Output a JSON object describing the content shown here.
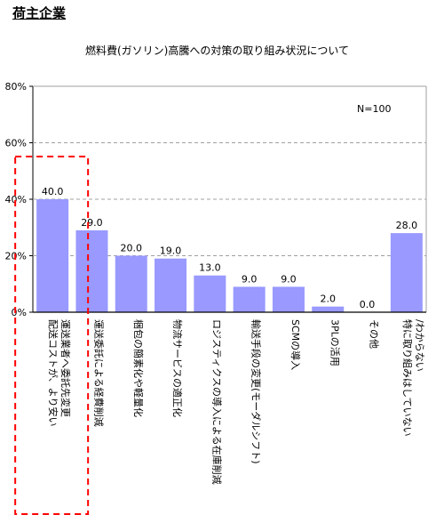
{
  "header": {
    "section_title": "荷主企業"
  },
  "chart_data": {
    "type": "bar",
    "title": "燃料費(ガソリン)高騰への対策の取り組み状況について",
    "note": "N=100",
    "unit": "%",
    "ylim": [
      0,
      80
    ],
    "yticks": [
      "0%",
      "20%",
      "40%",
      "60%",
      "80%"
    ],
    "ytick_values": [
      0,
      20,
      40,
      60,
      80
    ],
    "categories": [
      [
        "配送コストが、より安い",
        "運送業者へ委託先変更"
      ],
      [
        "運送委託による経費削減"
      ],
      [
        "梱包の簡素化や軽量化"
      ],
      [
        "物流サービスの適正化"
      ],
      [
        "ロジスティクスの導入による在庫削減"
      ],
      [
        "輸送手段の変更(モーダルシフト)"
      ],
      [
        "SCMの導入"
      ],
      [
        "3PLの活用"
      ],
      [
        "その他"
      ],
      [
        "特に取り組みはしていない",
        "/わからない"
      ]
    ],
    "values": [
      40.0,
      29.0,
      20.0,
      19.0,
      13.0,
      9.0,
      9.0,
      2.0,
      0.0,
      28.0
    ],
    "value_labels": [
      "40.0",
      "29.0",
      "20.0",
      "19.0",
      "13.0",
      "9.0",
      "9.0",
      "2.0",
      "0.0",
      "28.0"
    ],
    "highlighted_category_index": 0,
    "colors": {
      "bar": "#9999ff",
      "axis": "#000000",
      "grid": "#a0a0a0",
      "highlight": "#ff0000"
    }
  }
}
